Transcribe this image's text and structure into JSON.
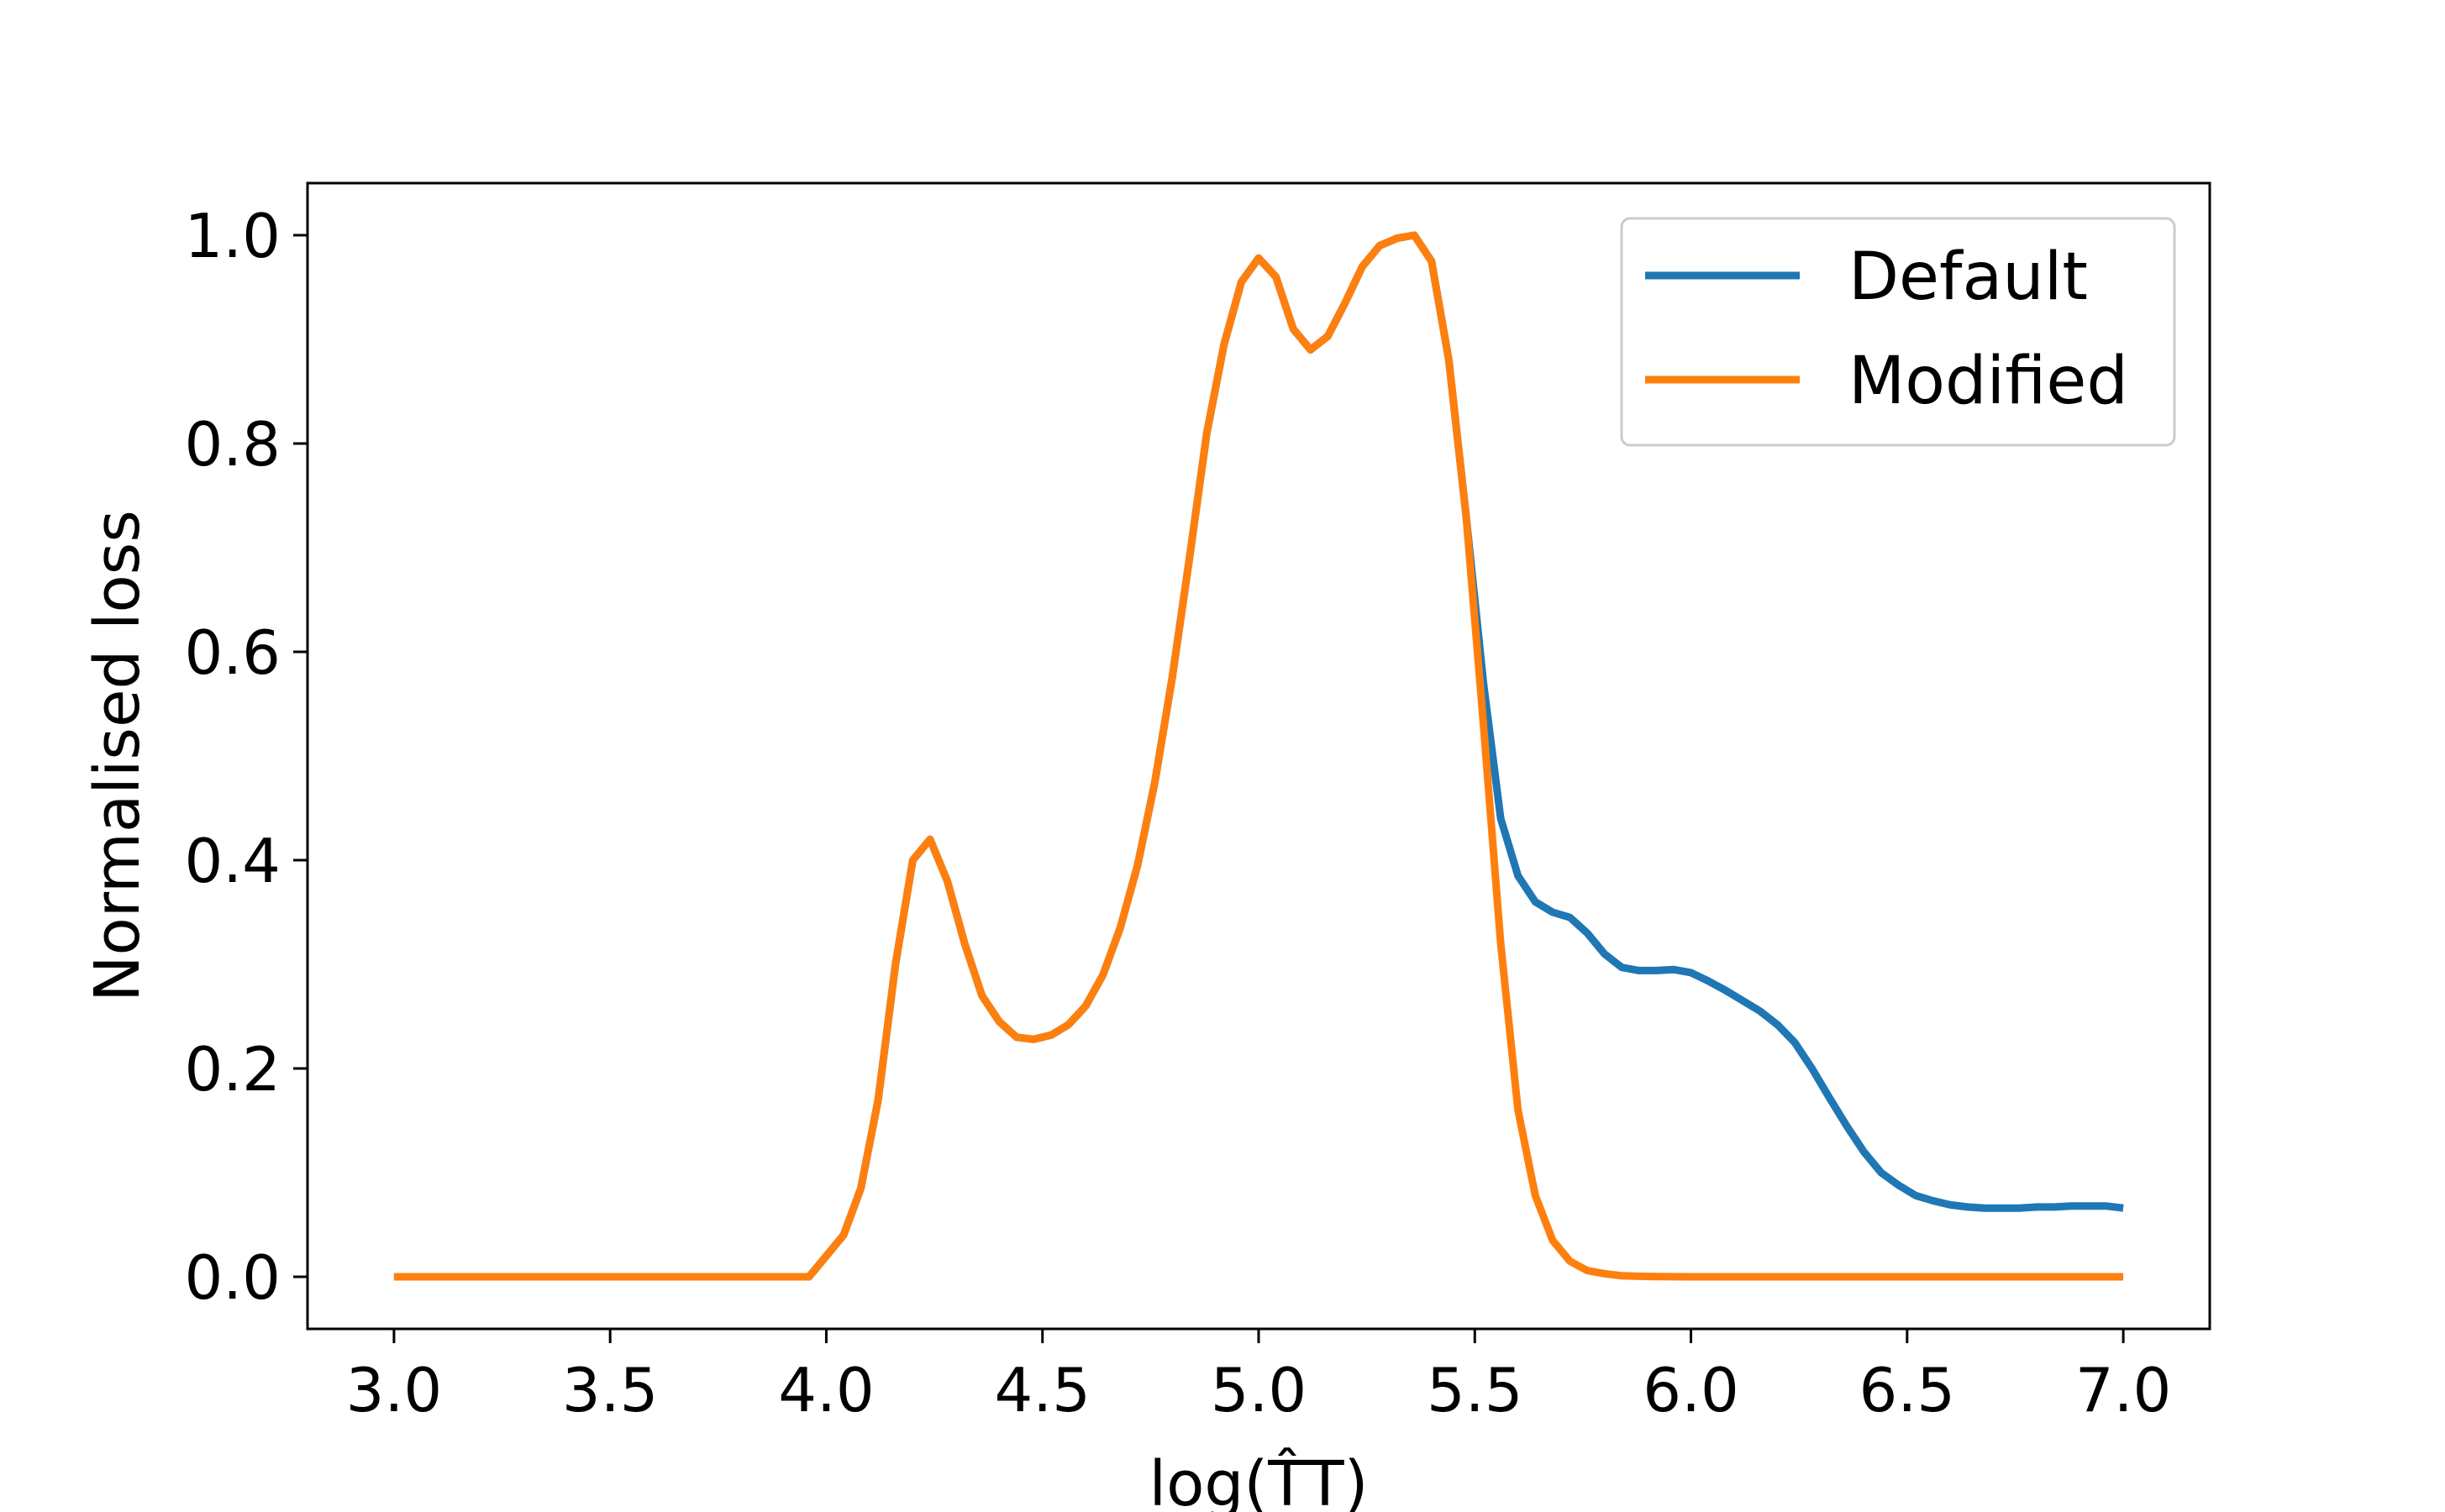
{
  "chart_data": {
    "type": "line",
    "title": "",
    "xlabel": "log(T̂T)",
    "ylabel": "Normalised loss",
    "xlim": [
      2.8,
      7.2
    ],
    "ylim": [
      -0.05,
      1.05
    ],
    "xticks": [
      3.0,
      3.5,
      4.0,
      4.5,
      5.0,
      5.5,
      6.0,
      6.5,
      7.0
    ],
    "xtick_labels": [
      "3.0",
      "3.5",
      "4.0",
      "4.5",
      "5.0",
      "5.5",
      "6.0",
      "6.5",
      "7.0"
    ],
    "yticks": [
      0.0,
      0.2,
      0.4,
      0.6,
      0.8,
      1.0
    ],
    "ytick_labels": [
      "0.0",
      "0.2",
      "0.4",
      "0.6",
      "0.8",
      "1.0"
    ],
    "grid": false,
    "legend_position": "top-right",
    "series": [
      {
        "name": "Default",
        "color": "#1f77b4",
        "x": [
          3.0,
          3.96,
          4.04,
          4.08,
          4.12,
          4.16,
          4.2,
          4.24,
          4.28,
          4.32,
          4.36,
          4.4,
          4.44,
          4.48,
          4.52,
          4.56,
          4.6,
          4.64,
          4.68,
          4.72,
          4.76,
          4.8,
          4.84,
          4.88,
          4.92,
          4.96,
          5.0,
          5.04,
          5.08,
          5.12,
          5.16,
          5.2,
          5.24,
          5.28,
          5.32,
          5.36,
          5.4,
          5.44,
          5.48,
          5.52,
          5.56,
          5.6,
          5.64,
          5.68,
          5.72,
          5.76,
          5.8,
          5.84,
          5.88,
          5.92,
          5.96,
          6.0,
          6.04,
          6.08,
          6.12,
          6.16,
          6.2,
          6.24,
          6.28,
          6.32,
          6.36,
          6.4,
          6.44,
          6.48,
          6.52,
          6.56,
          6.6,
          6.64,
          6.68,
          6.72,
          6.76,
          6.8,
          6.84,
          6.88,
          6.92,
          6.96,
          7.0
        ],
        "y": [
          0.0,
          0.0,
          0.04,
          0.085,
          0.17,
          0.3,
          0.4,
          0.42,
          0.38,
          0.32,
          0.27,
          0.245,
          0.23,
          0.228,
          0.232,
          0.242,
          0.26,
          0.29,
          0.335,
          0.395,
          0.475,
          0.575,
          0.69,
          0.81,
          0.895,
          0.955,
          0.978,
          0.96,
          0.91,
          0.89,
          0.903,
          0.935,
          0.97,
          0.99,
          0.997,
          1.0,
          0.975,
          0.88,
          0.73,
          0.57,
          0.44,
          0.385,
          0.36,
          0.35,
          0.345,
          0.33,
          0.31,
          0.297,
          0.294,
          0.294,
          0.295,
          0.292,
          0.284,
          0.275,
          0.265,
          0.255,
          0.242,
          0.225,
          0.2,
          0.172,
          0.145,
          0.12,
          0.1,
          0.088,
          0.078,
          0.073,
          0.069,
          0.067,
          0.066,
          0.066,
          0.066,
          0.067,
          0.067,
          0.068,
          0.068,
          0.068,
          0.066
        ]
      },
      {
        "name": "Modified",
        "color": "#ff7f0e",
        "x": [
          3.0,
          3.96,
          4.04,
          4.08,
          4.12,
          4.16,
          4.2,
          4.24,
          4.28,
          4.32,
          4.36,
          4.4,
          4.44,
          4.48,
          4.52,
          4.56,
          4.6,
          4.64,
          4.68,
          4.72,
          4.76,
          4.8,
          4.84,
          4.88,
          4.92,
          4.96,
          5.0,
          5.04,
          5.08,
          5.12,
          5.16,
          5.2,
          5.24,
          5.28,
          5.32,
          5.36,
          5.4,
          5.44,
          5.48,
          5.52,
          5.56,
          5.6,
          5.64,
          5.68,
          5.72,
          5.76,
          5.8,
          5.84,
          5.88,
          5.92,
          6.0,
          6.5,
          7.0
        ],
        "y": [
          0.0,
          0.0,
          0.04,
          0.085,
          0.17,
          0.3,
          0.4,
          0.42,
          0.38,
          0.32,
          0.27,
          0.245,
          0.23,
          0.228,
          0.232,
          0.242,
          0.26,
          0.29,
          0.335,
          0.395,
          0.475,
          0.575,
          0.69,
          0.81,
          0.895,
          0.955,
          0.978,
          0.96,
          0.91,
          0.89,
          0.903,
          0.935,
          0.97,
          0.99,
          0.997,
          1.0,
          0.975,
          0.88,
          0.73,
          0.53,
          0.32,
          0.16,
          0.078,
          0.035,
          0.015,
          0.006,
          0.003,
          0.001,
          0.0005,
          0.0002,
          0.0,
          0.0,
          0.0
        ]
      }
    ]
  }
}
